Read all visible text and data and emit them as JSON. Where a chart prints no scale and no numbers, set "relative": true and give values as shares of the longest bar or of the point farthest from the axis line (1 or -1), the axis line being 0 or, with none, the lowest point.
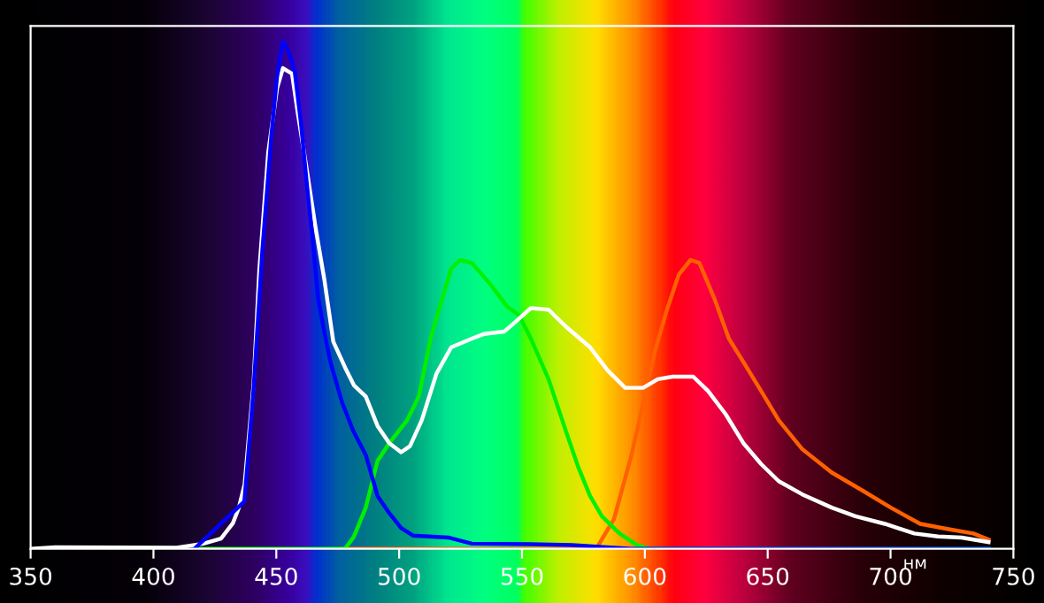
{
  "chart_data": {
    "type": "line",
    "relative": true,
    "xlabel": "нм",
    "xlim": [
      350,
      750
    ],
    "xticks": [
      350,
      400,
      450,
      500,
      550,
      600,
      650,
      700,
      750
    ],
    "grid": false,
    "legend": false,
    "marker": "none",
    "line_style": "solid",
    "series": [
      {
        "color": "#ff6000",
        "x": [
          476.8,
          580.2,
          587.4,
          594.6,
          599.4,
          604.2,
          609,
          613.8,
          618.6,
          622.2,
          628.2,
          634.2,
          640.1,
          647.3,
          654.5,
          664.1,
          676.1,
          688.1,
          700.1,
          712.1,
          724.1,
          733.7,
          739.9
        ],
        "values": [
          0,
          0,
          0.058,
          0.185,
          0.288,
          0.391,
          0.471,
          0.54,
          0.569,
          0.563,
          0.494,
          0.414,
          0.368,
          0.311,
          0.253,
          0.196,
          0.15,
          0.116,
          0.081,
          0.049,
          0.038,
          0.03,
          0.018
        ]
      },
      {
        "color": "#00f000",
        "x": [
          416.7,
          478,
          481.6,
          486.4,
          491.2,
          496,
          503.2,
          508,
          512.8,
          517.6,
          521.2,
          524.8,
          529.6,
          536.8,
          544,
          548.8,
          553.6,
          560.8,
          568,
          572.8,
          577.7,
          582.5,
          589.7,
          596.9,
          601.7,
          739.9
        ],
        "values": [
          0,
          0,
          0.024,
          0.081,
          0.173,
          0.208,
          0.253,
          0.3,
          0.414,
          0.494,
          0.552,
          0.569,
          0.563,
          0.523,
          0.477,
          0.46,
          0.414,
          0.334,
          0.23,
          0.162,
          0.104,
          0.064,
          0.03,
          0.007,
          0,
          0
        ]
      },
      {
        "color": "#ffffff",
        "x": [
          350,
          360,
          409.5,
          420.3,
          427.5,
          432.3,
          434.7,
          437.1,
          440.7,
          443.1,
          446.7,
          450.3,
          452.7,
          456.4,
          458.7,
          462.4,
          466,
          469.6,
          473.2,
          478,
          481.6,
          486.4,
          491.2,
          496,
          500.8,
          504.4,
          509.2,
          515.2,
          521.2,
          529.6,
          534.4,
          542.8,
          546.4,
          553.6,
          560.8,
          568,
          577.7,
          584.9,
          592,
          599.3,
          605.3,
          611.3,
          619.7,
          625.7,
          632.9,
          640.1,
          647.3,
          654.5,
          664.1,
          676.1,
          685.7,
          697.7,
          709.7,
          719.3,
          728.9,
          739.9
        ],
        "values": [
          0,
          0.003,
          0.002,
          0.01,
          0.02,
          0.05,
          0.08,
          0.127,
          0.322,
          0.55,
          0.78,
          0.907,
          0.947,
          0.936,
          0.86,
          0.747,
          0.632,
          0.529,
          0.408,
          0.357,
          0.322,
          0.3,
          0.242,
          0.208,
          0.19,
          0.202,
          0.253,
          0.345,
          0.397,
          0.414,
          0.423,
          0.428,
          0.443,
          0.474,
          0.471,
          0.437,
          0.397,
          0.351,
          0.317,
          0.317,
          0.334,
          0.339,
          0.339,
          0.311,
          0.265,
          0.208,
          0.167,
          0.133,
          0.107,
          0.081,
          0.064,
          0.049,
          0.03,
          0.024,
          0.022,
          0.013
        ]
      },
      {
        "color": "#0000ff",
        "x": [
          416.7,
          437,
          440.7,
          444.3,
          448,
          450.3,
          452.7,
          455,
          457.5,
          460,
          462.4,
          464.8,
          467,
          469.6,
          472,
          476.8,
          481.5,
          486.4,
          491.2,
          496,
          500.8,
          505.6,
          520,
          529.6,
          553.6,
          570.4,
          594.4,
          739.9
        ],
        "values": [
          0,
          0.093,
          0.311,
          0.586,
          0.815,
          0.93,
          1,
          0.98,
          0.94,
          0.84,
          0.72,
          0.61,
          0.494,
          0.425,
          0.368,
          0.288,
          0.23,
          0.185,
          0.104,
          0.07,
          0.041,
          0.026,
          0.022,
          0.01,
          0.009,
          0.007,
          0,
          0
        ]
      }
    ]
  }
}
